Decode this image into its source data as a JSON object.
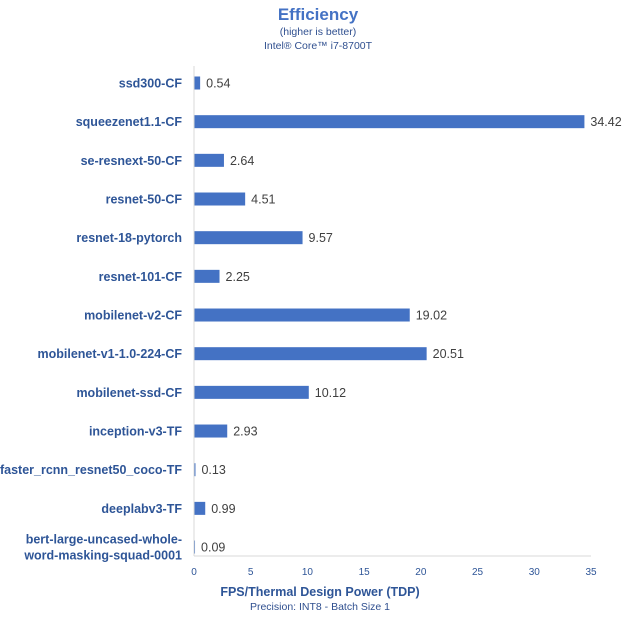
{
  "colors": {
    "bar": "#4472C4",
    "title": "#4472C4",
    "text": "#2F4F8F",
    "label": "#2E5597",
    "value": "#404040",
    "axis": "#D9D9D9"
  },
  "chart_data": {
    "type": "bar",
    "orientation": "horizontal",
    "title": "Efficiency",
    "subtitle_lines": [
      "(higher is better)",
      "Intel® Core™ i7-8700T"
    ],
    "xlabel": "FPS/Thermal Design Power (TDP)",
    "xlabel_sub": "Precision: INT8 - Batch Size 1",
    "xlim": [
      0,
      35
    ],
    "xticks": [
      0,
      5,
      10,
      15,
      20,
      25,
      30,
      35
    ],
    "grid": false,
    "legend": "none",
    "categories": [
      [
        "ssd300-CF"
      ],
      [
        "squeezenet1.1-CF"
      ],
      [
        "se-resnext-50-CF"
      ],
      [
        "resnet-50-CF"
      ],
      [
        "resnet-18-pytorch"
      ],
      [
        "resnet-101-CF"
      ],
      [
        "mobilenet-v2-CF"
      ],
      [
        "mobilenet-v1-1.0-224-CF"
      ],
      [
        "mobilenet-ssd-CF"
      ],
      [
        "inception-v3-TF"
      ],
      [
        "faster_rcnn_resnet50_coco-TF"
      ],
      [
        "deeplabv3-TF"
      ],
      [
        "bert-large-uncased-whole-",
        "word-masking-squad-0001"
      ]
    ],
    "values": [
      0.54,
      34.42,
      2.64,
      4.51,
      9.57,
      2.25,
      19.02,
      20.51,
      10.12,
      2.93,
      0.13,
      0.99,
      0.09
    ],
    "value_labels": [
      "0.54",
      "34.42",
      "2.64",
      "4.51",
      "9.57",
      "2.25",
      "19.02",
      "20.51",
      "10.12",
      "2.93",
      "0.13",
      "0.99",
      "0.09"
    ]
  }
}
